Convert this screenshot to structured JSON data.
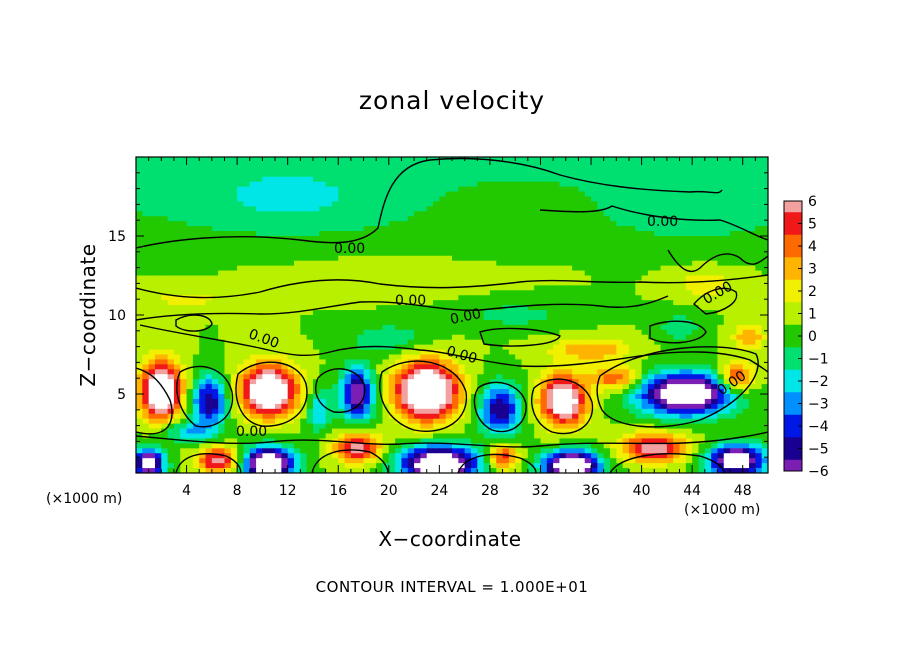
{
  "chart_data": {
    "type": "heatmap",
    "title": "zonal velocity",
    "xlabel": "X−coordinate",
    "ylabel": "Z−coordinate",
    "x_unit_left": "(×1000 m)",
    "x_unit_right": "(×1000 m)",
    "footer": "CONTOUR INTERVAL = 1.000E+01",
    "xlim": [
      0,
      50
    ],
    "ylim": [
      0,
      20
    ],
    "x_ticks": [
      4,
      8,
      12,
      16,
      20,
      24,
      28,
      32,
      36,
      40,
      44,
      48
    ],
    "y_ticks": [
      5,
      10,
      15
    ],
    "contour_labels": [
      "0.00",
      "0.00",
      "0.00",
      "0.00",
      "0.00",
      "0.00",
      "0.00",
      "0.00",
      "0.00"
    ],
    "colorbar": {
      "values": [
        6,
        5,
        4,
        3,
        2,
        1,
        0,
        -1,
        -2,
        -3,
        -4,
        -5,
        -6
      ],
      "colors": [
        "#f2a0a0",
        "#f01818",
        "#ff6a00",
        "#ffb400",
        "#f0f000",
        "#b8f000",
        "#22c800",
        "#00e070",
        "#00e6e6",
        "#0090ff",
        "#0018e6",
        "#1a0090",
        "#7a1eb4"
      ]
    },
    "blobs": [
      {
        "x": 2.0,
        "z": 5.2,
        "amp": 9,
        "sx": 1.6,
        "sz": 1.8
      },
      {
        "x": 5.8,
        "z": 4.5,
        "amp": -6,
        "sx": 1.4,
        "sz": 1.6
      },
      {
        "x": 10.5,
        "z": 5.2,
        "amp": 9,
        "sx": 2.2,
        "sz": 1.6
      },
      {
        "x": 14.5,
        "z": 4.0,
        "amp": -3,
        "sx": 1.0,
        "sz": 1.4
      },
      {
        "x": 17.5,
        "z": 5.0,
        "amp": -7,
        "sx": 1.3,
        "sz": 1.6
      },
      {
        "x": 23.0,
        "z": 5.2,
        "amp": 10,
        "sx": 2.4,
        "sz": 1.8
      },
      {
        "x": 28.8,
        "z": 4.0,
        "amp": -6,
        "sx": 1.6,
        "sz": 1.6
      },
      {
        "x": 33.8,
        "z": 4.6,
        "amp": 8,
        "sx": 1.8,
        "sz": 1.6
      },
      {
        "x": 38.0,
        "z": 6.0,
        "amp": 4,
        "sx": 2.0,
        "sz": 0.8
      },
      {
        "x": 43.5,
        "z": 5.0,
        "amp": -10,
        "sx": 3.6,
        "sz": 1.3
      },
      {
        "x": 47.5,
        "z": 6.0,
        "amp": 5,
        "sx": 1.4,
        "sz": 1.0
      },
      {
        "x": 4.0,
        "z": 2.6,
        "amp": -3,
        "sx": 2.0,
        "sz": 0.7
      },
      {
        "x": 1.0,
        "z": 0.6,
        "amp": -9,
        "sx": 1.2,
        "sz": 0.9
      },
      {
        "x": 6.5,
        "z": 0.8,
        "amp": 6,
        "sx": 1.6,
        "sz": 0.8
      },
      {
        "x": 10.5,
        "z": 0.6,
        "amp": -10,
        "sx": 2.0,
        "sz": 1.0
      },
      {
        "x": 17.5,
        "z": 1.6,
        "amp": 6,
        "sx": 1.8,
        "sz": 0.9
      },
      {
        "x": 24.0,
        "z": 0.6,
        "amp": -10,
        "sx": 3.0,
        "sz": 1.1
      },
      {
        "x": 29.0,
        "z": 1.0,
        "amp": 5,
        "sx": 1.2,
        "sz": 0.8
      },
      {
        "x": 34.5,
        "z": 0.4,
        "amp": -10,
        "sx": 2.2,
        "sz": 1.0
      },
      {
        "x": 41.0,
        "z": 1.6,
        "amp": 6,
        "sx": 2.6,
        "sz": 0.9
      },
      {
        "x": 47.5,
        "z": 0.8,
        "amp": -9,
        "sx": 2.2,
        "sz": 1.0
      },
      {
        "x": 20.0,
        "z": 8.5,
        "amp": -2,
        "sx": 3.0,
        "sz": 0.9
      },
      {
        "x": 36.0,
        "z": 7.8,
        "amp": 3,
        "sx": 3.0,
        "sz": 0.7
      },
      {
        "x": 43.0,
        "z": 9.2,
        "amp": -2,
        "sx": 1.6,
        "sz": 0.8
      },
      {
        "x": 48.5,
        "z": 8.6,
        "amp": 3,
        "sx": 1.2,
        "sz": 0.8
      },
      {
        "x": 30.0,
        "z": 10.0,
        "amp": -1.5,
        "sx": 4.0,
        "sz": 0.8
      },
      {
        "x": 4.0,
        "z": 11.0,
        "amp": 1.5,
        "sx": 3.0,
        "sz": 0.6
      },
      {
        "x": 20.0,
        "z": 12.5,
        "amp": 1.0,
        "sx": 6.0,
        "sz": 1.0
      },
      {
        "x": 45.0,
        "z": 12.0,
        "amp": 2.0,
        "sx": 2.0,
        "sz": 0.8
      },
      {
        "x": 12.0,
        "z": 17.0,
        "amp": -1.2,
        "sx": 8.0,
        "sz": 2.0
      },
      {
        "x": 30.0,
        "z": 17.5,
        "amp": 0.6,
        "sx": 6.0,
        "sz": 1.5
      },
      {
        "x": 44.0,
        "z": 16.5,
        "amp": -1.0,
        "sx": 6.0,
        "sz": 1.8
      }
    ]
  }
}
